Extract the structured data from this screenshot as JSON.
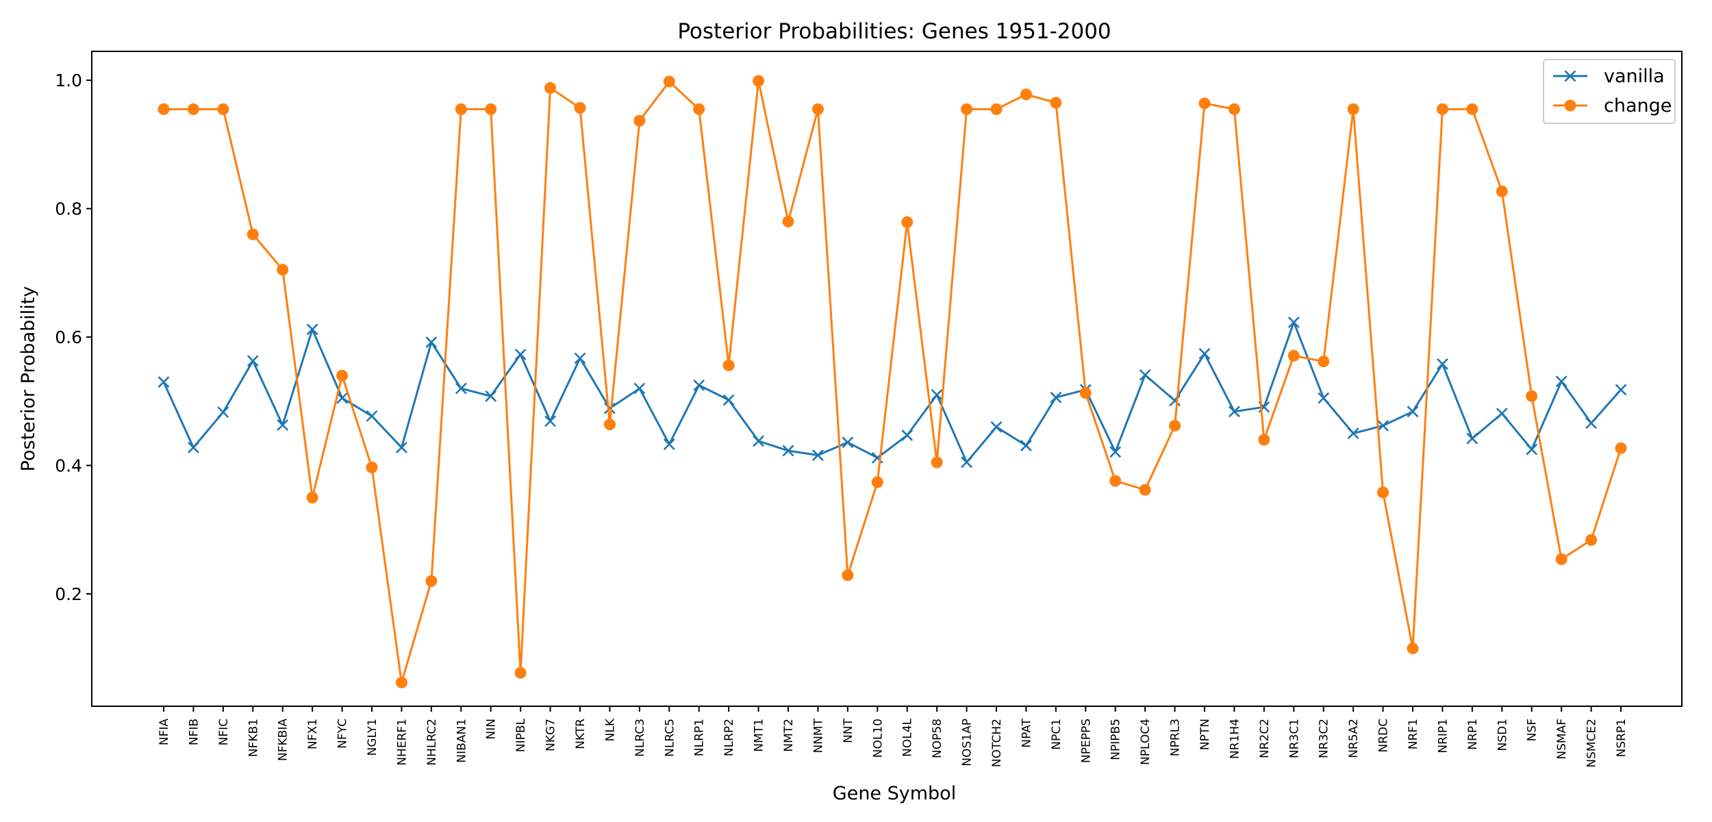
{
  "chart_data": {
    "type": "line",
    "title": "Posterior Probabilities: Genes 1951-2000",
    "xlabel": "Gene Symbol",
    "ylabel": "Posterior Probability",
    "ylim": [
      0.025,
      1.045
    ],
    "yticks": [
      0.2,
      0.4,
      0.6,
      0.8,
      1.0
    ],
    "ytick_labels": [
      "0.2",
      "0.4",
      "0.6",
      "0.8",
      "1.0"
    ],
    "grid": false,
    "legend_position": "top-right",
    "categories": [
      "NFIA",
      "NFIB",
      "NFIC",
      "NFKB1",
      "NFKBIA",
      "NFX1",
      "NFYC",
      "NGLY1",
      "NHERF1",
      "NHLRC2",
      "NIBAN1",
      "NIN",
      "NIPBL",
      "NKG7",
      "NKTR",
      "NLK",
      "NLRC3",
      "NLRC5",
      "NLRP1",
      "NLRP2",
      "NMT1",
      "NMT2",
      "NNMT",
      "NNT",
      "NOL10",
      "NOL4L",
      "NOP58",
      "NOS1AP",
      "NOTCH2",
      "NPAT",
      "NPC1",
      "NPEPPS",
      "NPIPB5",
      "NPLOC4",
      "NPRL3",
      "NPTN",
      "NR1H4",
      "NR2C2",
      "NR3C1",
      "NR3C2",
      "NR5A2",
      "NRDC",
      "NRF1",
      "NRIP1",
      "NRP1",
      "NSD1",
      "NSF",
      "NSMAF",
      "NSMCE2",
      "NSRP1"
    ],
    "series": [
      {
        "name": "vanilla",
        "color": "#1f77b4",
        "marker": "x",
        "values": [
          0.53,
          0.428,
          0.483,
          0.563,
          0.463,
          0.612,
          0.505,
          0.477,
          0.428,
          0.592,
          0.52,
          0.508,
          0.573,
          0.469,
          0.567,
          0.489,
          0.52,
          0.433,
          0.525,
          0.502,
          0.438,
          0.423,
          0.416,
          0.436,
          0.412,
          0.447,
          0.51,
          0.405,
          0.46,
          0.431,
          0.506,
          0.518,
          0.421,
          0.541,
          0.501,
          0.574,
          0.484,
          0.491,
          0.623,
          0.505,
          0.45,
          0.462,
          0.484,
          0.558,
          0.442,
          0.481,
          0.425,
          0.531,
          0.466,
          0.518
        ]
      },
      {
        "name": "change",
        "color": "#ff7f0e",
        "marker": "o",
        "values": [
          0.955,
          0.955,
          0.955,
          0.76,
          0.705,
          0.35,
          0.54,
          0.397,
          0.062,
          0.22,
          0.955,
          0.955,
          0.077,
          0.988,
          0.957,
          0.464,
          0.937,
          0.998,
          0.955,
          0.556,
          0.999,
          0.78,
          0.955,
          0.229,
          0.374,
          0.779,
          0.405,
          0.955,
          0.955,
          0.978,
          0.965,
          0.513,
          0.376,
          0.362,
          0.462,
          0.964,
          0.955,
          0.44,
          0.571,
          0.562,
          0.955,
          0.358,
          0.115,
          0.955,
          0.955,
          0.827,
          0.508,
          0.254,
          0.284,
          0.427
        ]
      }
    ]
  }
}
